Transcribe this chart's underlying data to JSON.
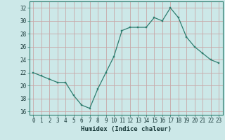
{
  "x": [
    0,
    1,
    2,
    3,
    4,
    5,
    6,
    7,
    8,
    9,
    10,
    11,
    12,
    13,
    14,
    15,
    16,
    17,
    18,
    19,
    20,
    21,
    22,
    23
  ],
  "y": [
    22,
    21.5,
    21,
    20.5,
    20.5,
    18.5,
    17,
    16.5,
    19.5,
    22,
    24.5,
    28.5,
    29,
    29,
    29,
    30.5,
    30,
    32,
    30.5,
    27.5,
    26,
    25,
    24,
    23.5
  ],
  "line_color": "#2d7d6f",
  "marker_color": "#2d7d6f",
  "bg_color": "#cce8e8",
  "grid_color": "#c8a8a8",
  "xlabel": "Humidex (Indice chaleur)",
  "xlim": [
    -0.5,
    23.5
  ],
  "ylim": [
    15.5,
    33.0
  ],
  "yticks": [
    16,
    18,
    20,
    22,
    24,
    26,
    28,
    30,
    32
  ],
  "xticks": [
    0,
    1,
    2,
    3,
    4,
    5,
    6,
    7,
    8,
    9,
    10,
    11,
    12,
    13,
    14,
    15,
    16,
    17,
    18,
    19,
    20,
    21,
    22,
    23
  ],
  "tick_fontsize": 5.5,
  "xlabel_fontsize": 6.5
}
